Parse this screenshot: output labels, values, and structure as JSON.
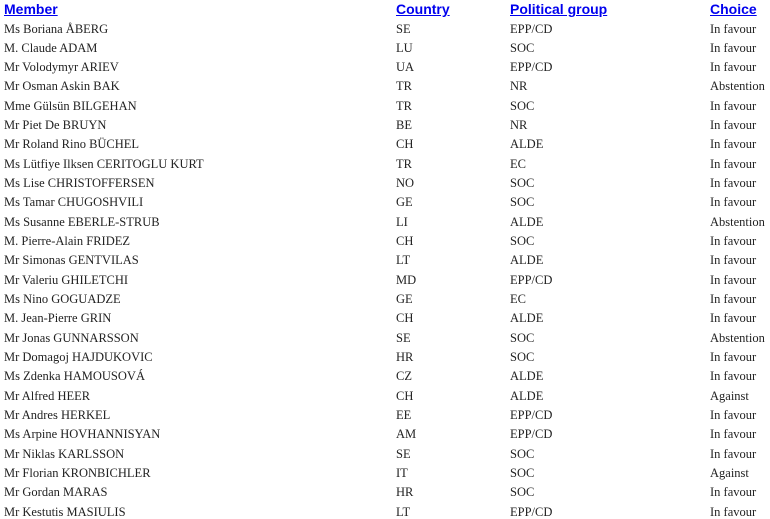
{
  "table": {
    "header": [
      "Member",
      "Country",
      "Political group",
      "Choice"
    ],
    "rows": [
      [
        "Ms Boriana ÅBERG",
        "SE",
        "EPP/CD",
        "In favour"
      ],
      [
        "M. Claude ADAM",
        "LU",
        "SOC",
        "In favour"
      ],
      [
        "Mr Volodymyr ARIEV",
        "UA",
        "EPP/CD",
        "In favour"
      ],
      [
        "Mr Osman Askin BAK",
        "TR",
        "NR",
        "Abstention"
      ],
      [
        "Mme Gülsün BILGEHAN",
        "TR",
        "SOC",
        "In favour"
      ],
      [
        "Mr Piet De BRUYN",
        "BE",
        "NR",
        "In favour"
      ],
      [
        "Mr Roland Rino BÜCHEL",
        "CH",
        "ALDE",
        "In favour"
      ],
      [
        "Ms Lütfiye Ilksen CERITOGLU KURT",
        "TR",
        "EC",
        "In favour"
      ],
      [
        "Ms Lise CHRISTOFFERSEN",
        "NO",
        "SOC",
        "In favour"
      ],
      [
        "Ms Tamar CHUGOSHVILI",
        "GE",
        "SOC",
        "In favour"
      ],
      [
        "Ms Susanne EBERLE-STRUB",
        "LI",
        "ALDE",
        "Abstention"
      ],
      [
        "M. Pierre-Alain FRIDEZ",
        "CH",
        "SOC",
        "In favour"
      ],
      [
        "Mr Simonas GENTVILAS",
        "LT",
        "ALDE",
        "In favour"
      ],
      [
        "Mr Valeriu GHILETCHI",
        "MD",
        "EPP/CD",
        "In favour"
      ],
      [
        "Ms Nino GOGUADZE",
        "GE",
        "EC",
        "In favour"
      ],
      [
        "M. Jean-Pierre GRIN",
        "CH",
        "ALDE",
        "In favour"
      ],
      [
        "Mr Jonas GUNNARSSON",
        "SE",
        "SOC",
        "Abstention"
      ],
      [
        "Mr Domagoj HAJDUKOVIC",
        "HR",
        "SOC",
        "In favour"
      ],
      [
        "Ms Zdenka HAMOUSOVÁ",
        "CZ",
        "ALDE",
        "In favour"
      ],
      [
        "Mr Alfred HEER",
        "CH",
        "ALDE",
        "Against"
      ],
      [
        "Mr Andres HERKEL",
        "EE",
        "EPP/CD",
        "In favour"
      ],
      [
        "Ms Arpine HOVHANNISYAN",
        "AM",
        "EPP/CD",
        "In favour"
      ],
      [
        "Mr Niklas KARLSSON",
        "SE",
        "SOC",
        "In favour"
      ],
      [
        "Mr Florian KRONBICHLER",
        "IT",
        "SOC",
        "Against"
      ],
      [
        "Mr Gordan MARAS",
        "HR",
        "SOC",
        "In favour"
      ],
      [
        "Mr Kestutis MASIULIS",
        "LT",
        "EPP/CD",
        "In favour"
      ]
    ]
  }
}
